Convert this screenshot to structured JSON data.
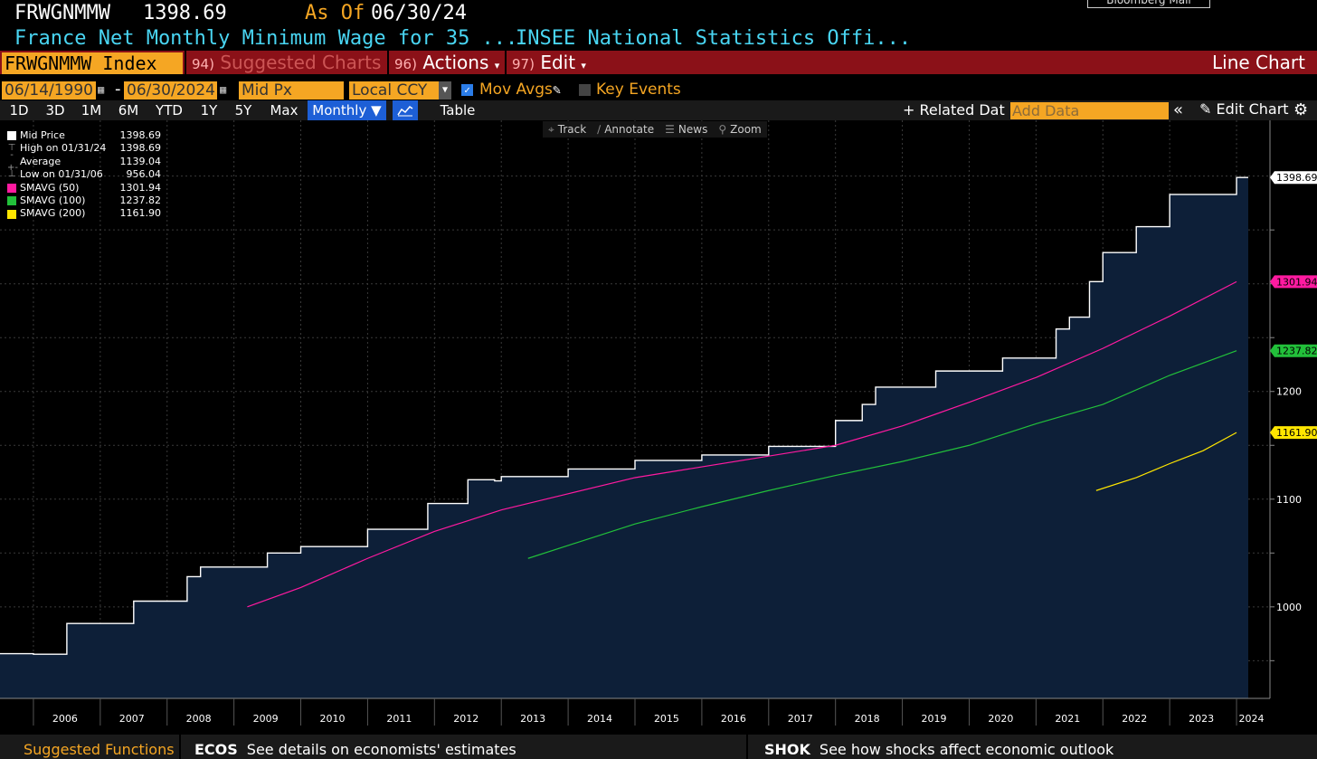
{
  "header": {
    "ticker": "FRWGNMMW",
    "last_price": "1398.69",
    "as_of_label": "As Of",
    "as_of_date": "06/30/24",
    "terminal_tag": "Bloomberg Mail",
    "description": "France Net Monthly Minimum Wage for 35 ...",
    "source": "INSEE National Statistics Offi..."
  },
  "menubar": {
    "security": "FRWGNMMW Index",
    "suggested_num": "94)",
    "suggested_label": "Suggested Charts",
    "actions_num": "96)",
    "actions_label": "Actions",
    "edit_num": "97)",
    "edit_label": "Edit",
    "chart_type": "Line Chart"
  },
  "controls": {
    "start_date": "06/14/1990",
    "end_date": "06/30/2024",
    "price_field": "Mid Px",
    "currency": "Local CCY",
    "mov_avgs": "Mov Avgs",
    "key_events": "Key Events",
    "periods": [
      "1D",
      "3D",
      "1M",
      "6M",
      "YTD",
      "1Y",
      "5Y",
      "Max"
    ],
    "frequency": "Monthly",
    "table": "Table",
    "related_data": "+ Related Dat",
    "add_data_placeholder": "Add Data",
    "edit_chart": "Edit Chart"
  },
  "chart_tools": [
    "Track",
    "Annotate",
    "News",
    "Zoom"
  ],
  "legend": [
    {
      "name": "Mid Price",
      "value": "1398.69",
      "color": "#ffffff",
      "mark": "swatch"
    },
    {
      "name": "High on 01/31/24",
      "value": "1398.69",
      "color": "#999999",
      "mark": "high"
    },
    {
      "name": "Average",
      "value": "1139.04",
      "color": "#999999",
      "mark": "avg"
    },
    {
      "name": "Low on 01/31/06",
      "value": "956.04",
      "color": "#999999",
      "mark": "low"
    },
    {
      "name": "SMAVG (50)",
      "value": "1301.94",
      "color": "#ff1aa0",
      "mark": "swatch"
    },
    {
      "name": "SMAVG (100)",
      "value": "1237.82",
      "color": "#22c03a",
      "mark": "swatch"
    },
    {
      "name": "SMAVG (200)",
      "value": "1161.90",
      "color": "#ffe600",
      "mark": "swatch"
    }
  ],
  "footer": {
    "suggested": "Suggested Functions",
    "fn1_code": "ECOS",
    "fn1_desc": "See details on economists' estimates",
    "fn2_code": "SHOK",
    "fn2_desc": "See how shocks affect economic outlook"
  },
  "chart_data": {
    "type": "area",
    "title": "",
    "xlabel": "",
    "ylabel": "",
    "x_ticks": [
      "2006",
      "2007",
      "2008",
      "2009",
      "2010",
      "2011",
      "2012",
      "2013",
      "2014",
      "2015",
      "2016",
      "2017",
      "2018",
      "2019",
      "2020",
      "2021",
      "2022",
      "2023",
      "2024"
    ],
    "y_ticks": [
      1000,
      1100,
      1200
    ],
    "xlim": [
      2005.5,
      2024.5
    ],
    "ylim": [
      915,
      1435
    ],
    "series": [
      {
        "name": "Mid Price",
        "color": "#ffffff",
        "fill": "#0d1f38",
        "step": true,
        "points": [
          [
            2005.5,
            956.5
          ],
          [
            2006.0,
            956.04
          ],
          [
            2006.5,
            984.6
          ],
          [
            2007.5,
            1005.3
          ],
          [
            2008.3,
            1028.0
          ],
          [
            2008.5,
            1037.0
          ],
          [
            2009.5,
            1050.0
          ],
          [
            2010.0,
            1056.0
          ],
          [
            2011.0,
            1072.0
          ],
          [
            2011.9,
            1096.0
          ],
          [
            2012.5,
            1118.0
          ],
          [
            2012.9,
            1117.0
          ],
          [
            2013.0,
            1121.0
          ],
          [
            2014.0,
            1128.0
          ],
          [
            2015.0,
            1136.0
          ],
          [
            2016.0,
            1141.0
          ],
          [
            2017.0,
            1149.0
          ],
          [
            2018.0,
            1173.0
          ],
          [
            2018.4,
            1188.0
          ],
          [
            2018.6,
            1204.0
          ],
          [
            2019.5,
            1219.0
          ],
          [
            2020.5,
            1231.0
          ],
          [
            2021.3,
            1258.0
          ],
          [
            2021.5,
            1269.0
          ],
          [
            2021.8,
            1302.0
          ],
          [
            2022.0,
            1329.0
          ],
          [
            2022.5,
            1353.0
          ],
          [
            2023.0,
            1383.0
          ],
          [
            2024.0,
            1398.69
          ],
          [
            2024.5,
            1398.69
          ]
        ]
      },
      {
        "name": "SMAVG (50)",
        "color": "#ff1aa0",
        "points": [
          [
            2009.2,
            1000.0
          ],
          [
            2010.0,
            1018.0
          ],
          [
            2011.0,
            1045.0
          ],
          [
            2012.0,
            1070.0
          ],
          [
            2013.0,
            1090.0
          ],
          [
            2014.0,
            1105.0
          ],
          [
            2015.0,
            1120.0
          ],
          [
            2016.0,
            1130.0
          ],
          [
            2017.0,
            1140.0
          ],
          [
            2018.0,
            1150.0
          ],
          [
            2019.0,
            1168.0
          ],
          [
            2020.0,
            1190.0
          ],
          [
            2021.0,
            1213.0
          ],
          [
            2022.0,
            1240.0
          ],
          [
            2023.0,
            1270.0
          ],
          [
            2024.0,
            1301.94
          ]
        ]
      },
      {
        "name": "SMAVG (100)",
        "color": "#22c03a",
        "points": [
          [
            2013.4,
            1045.0
          ],
          [
            2014.0,
            1057.0
          ],
          [
            2015.0,
            1077.0
          ],
          [
            2016.0,
            1093.0
          ],
          [
            2017.0,
            1108.0
          ],
          [
            2018.0,
            1122.0
          ],
          [
            2019.0,
            1135.0
          ],
          [
            2020.0,
            1150.0
          ],
          [
            2021.0,
            1170.0
          ],
          [
            2022.0,
            1188.0
          ],
          [
            2023.0,
            1215.0
          ],
          [
            2024.0,
            1237.82
          ]
        ]
      },
      {
        "name": "SMAVG (200)",
        "color": "#ffe600",
        "points": [
          [
            2021.9,
            1108.0
          ],
          [
            2022.5,
            1120.0
          ],
          [
            2023.0,
            1133.0
          ],
          [
            2023.5,
            1145.0
          ],
          [
            2024.0,
            1161.9
          ]
        ]
      }
    ]
  }
}
